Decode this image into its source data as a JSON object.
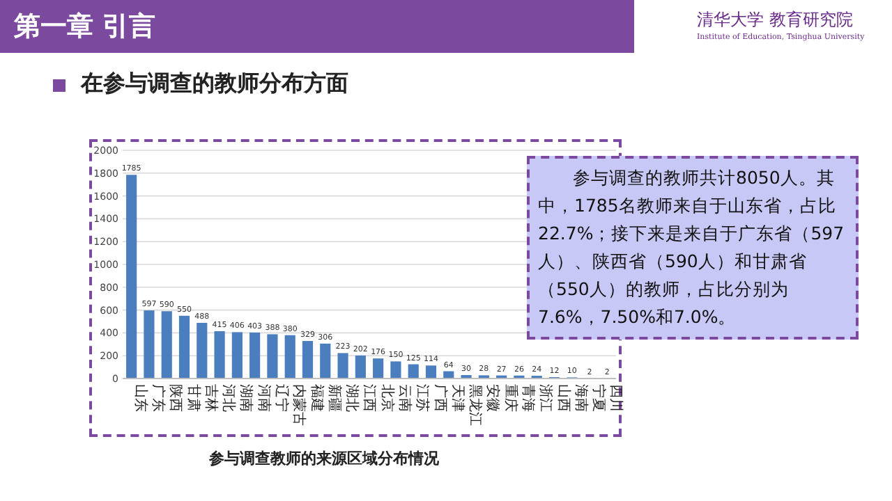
{
  "chart_data": {
    "type": "bar",
    "title": "第一章 引言",
    "subtitle": "在参与调查的教师分布方面",
    "categories": [
      "山东",
      "广东",
      "陕西",
      "甘肃",
      "吉林",
      "河北",
      "湖南",
      "河南",
      "辽宁",
      "内蒙古",
      "福建",
      "新疆",
      "湖北",
      "江西",
      "北京",
      "云南",
      "江苏",
      "广西",
      "天津",
      "黑龙江",
      "安徽",
      "重庆",
      "青海",
      "浙江",
      "山西",
      "海南",
      "宁夏",
      "四川"
    ],
    "values": [
      1785,
      597,
      590,
      550,
      488,
      415,
      406,
      403,
      388,
      380,
      329,
      306,
      223,
      202,
      176,
      150,
      125,
      114,
      64,
      30,
      28,
      27,
      26,
      24,
      12,
      10,
      2,
      2
    ],
    "color": "#4a7ebf",
    "ylim": [
      0,
      2000
    ],
    "yticks": [
      0,
      200,
      400,
      600,
      800,
      1000,
      1200,
      1400,
      1600,
      1800,
      2000
    ],
    "grid": "y",
    "data_labels": true,
    "annotations": [
      "参与调查的教师共计8050人。其中，1785名教师来自于山东省，占比22.7%；接下来是来自于广东省（597人）、陕西省（590人）和甘肃省（550人）的教师，占比分别为7.6%，7.50%和7.0%。",
      "参与调查教师的来源区域分布情况",
      "清华大学 教育研究院",
      "Institute of Education, Tsinghua University"
    ]
  }
}
